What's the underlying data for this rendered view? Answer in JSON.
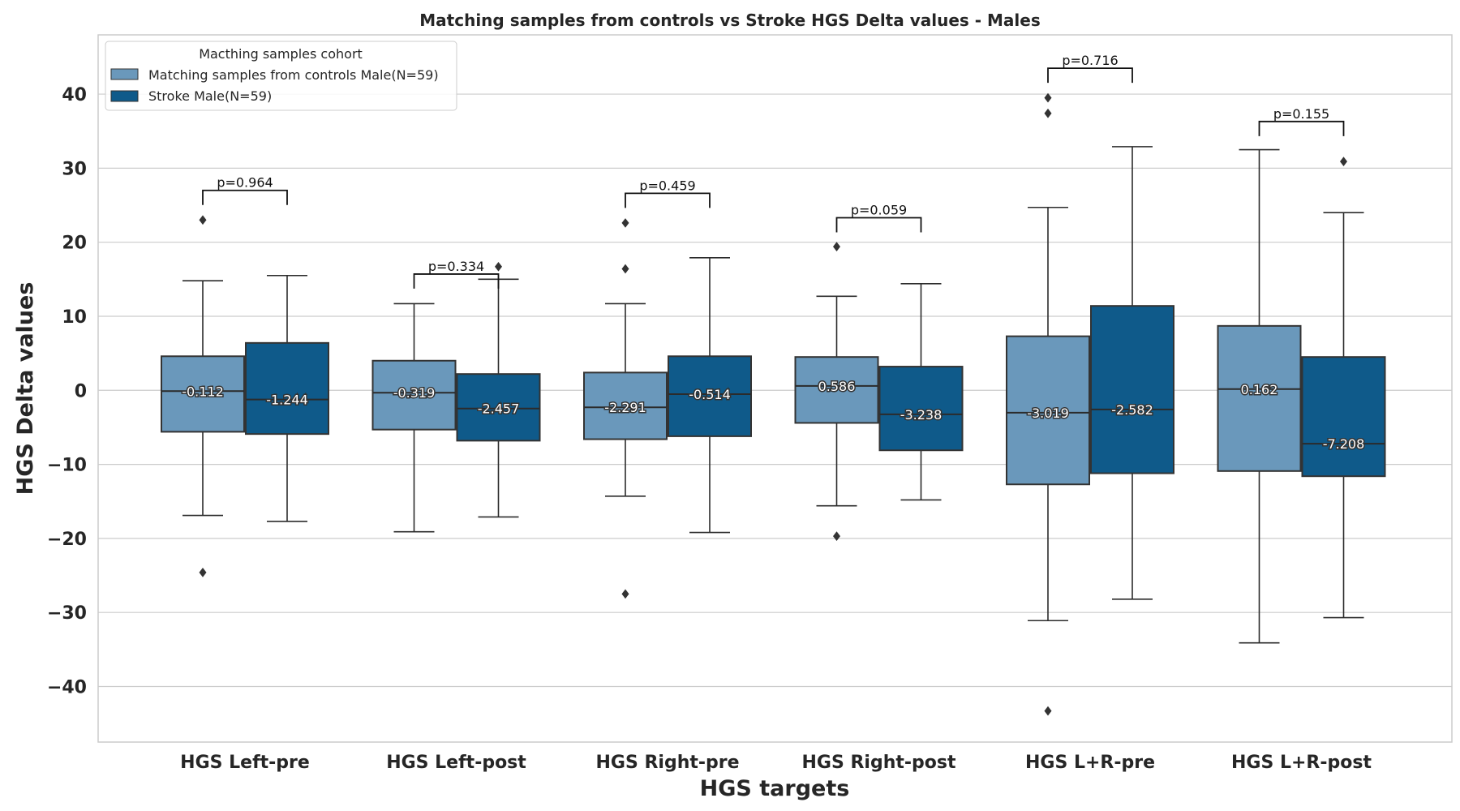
{
  "chart_data": {
    "type": "box",
    "title": "Matching samples from controls vs Stroke HGS Delta values - Males",
    "xlabel": "HGS targets",
    "ylabel": "HGS Delta values",
    "ylim": [
      -47.5,
      48
    ],
    "yticks": [
      40,
      30,
      20,
      10,
      0,
      -10,
      -20,
      -30,
      -40
    ],
    "ytick_labels": [
      "40",
      "30",
      "20",
      "10",
      "0",
      "−10",
      "−20",
      "−30",
      "−40"
    ],
    "grid": "horizontal",
    "categories": [
      "HGS Left-pre",
      "HGS Left-post",
      "HGS Right-pre",
      "HGS Right-post",
      "HGS L+R-pre",
      "HGS L+R-post"
    ],
    "legend": {
      "title": "Macthing samples cohort",
      "position": "top-left"
    },
    "series": [
      {
        "name": "Matching samples from controls Male(N=59)",
        "color": "#6a98bb",
        "boxes": [
          {
            "q1": -5.6,
            "median": -0.112,
            "q3": 4.6,
            "whisker_low": -16.9,
            "whisker_high": 14.8,
            "outliers": [
              23.0,
              -24.6
            ],
            "median_label": "-0.112"
          },
          {
            "q1": -5.3,
            "median": -0.319,
            "q3": 4.0,
            "whisker_low": -19.1,
            "whisker_high": 11.7,
            "outliers": [],
            "median_label": "-0.319"
          },
          {
            "q1": -6.6,
            "median": -2.291,
            "q3": 2.4,
            "whisker_low": -14.3,
            "whisker_high": 11.7,
            "outliers": [
              22.6,
              16.4,
              -27.5
            ],
            "median_label": "-2.291"
          },
          {
            "q1": -4.4,
            "median": 0.586,
            "q3": 4.5,
            "whisker_low": -15.6,
            "whisker_high": 12.7,
            "outliers": [
              19.4,
              -19.7
            ],
            "median_label": "0.586"
          },
          {
            "q1": -12.7,
            "median": -3.019,
            "q3": 7.3,
            "whisker_low": -31.1,
            "whisker_high": 24.7,
            "outliers": [
              39.5,
              37.4,
              -43.3
            ],
            "median_label": "-3.019"
          },
          {
            "q1": -10.9,
            "median": 0.162,
            "q3": 8.7,
            "whisker_low": -34.1,
            "whisker_high": 32.5,
            "outliers": [],
            "median_label": "0.162"
          }
        ]
      },
      {
        "name": "Stroke Male(N=59)",
        "color": "#0f5a8a",
        "boxes": [
          {
            "q1": -5.9,
            "median": -1.244,
            "q3": 6.4,
            "whisker_low": -17.7,
            "whisker_high": 15.5,
            "outliers": [],
            "median_label": "-1.244"
          },
          {
            "q1": -6.8,
            "median": -2.457,
            "q3": 2.2,
            "whisker_low": -17.1,
            "whisker_high": 15.0,
            "outliers": [
              16.7
            ],
            "median_label": "-2.457"
          },
          {
            "q1": -6.2,
            "median": -0.514,
            "q3": 4.6,
            "whisker_low": -19.2,
            "whisker_high": 17.9,
            "outliers": [],
            "median_label": "-0.514"
          },
          {
            "q1": -8.1,
            "median": -3.238,
            "q3": 3.2,
            "whisker_low": -14.8,
            "whisker_high": 14.4,
            "outliers": [],
            "median_label": "-3.238"
          },
          {
            "q1": -11.2,
            "median": -2.582,
            "q3": 11.4,
            "whisker_low": -28.2,
            "whisker_high": 32.9,
            "outliers": [],
            "median_label": "-2.582"
          },
          {
            "q1": -11.6,
            "median": -7.208,
            "q3": 4.5,
            "whisker_low": -30.7,
            "whisker_high": 24.0,
            "outliers": [
              30.9
            ],
            "median_label": "-7.208"
          }
        ]
      }
    ],
    "annotations": [
      {
        "category": 0,
        "text": "p=0.964",
        "y": 27.0
      },
      {
        "category": 1,
        "text": "p=0.334",
        "y": 15.7
      },
      {
        "category": 2,
        "text": "p=0.459",
        "y": 26.6
      },
      {
        "category": 3,
        "text": "p=0.059",
        "y": 23.3
      },
      {
        "category": 4,
        "text": "p=0.716",
        "y": 43.5
      },
      {
        "category": 5,
        "text": "p=0.155",
        "y": 36.3
      }
    ]
  }
}
